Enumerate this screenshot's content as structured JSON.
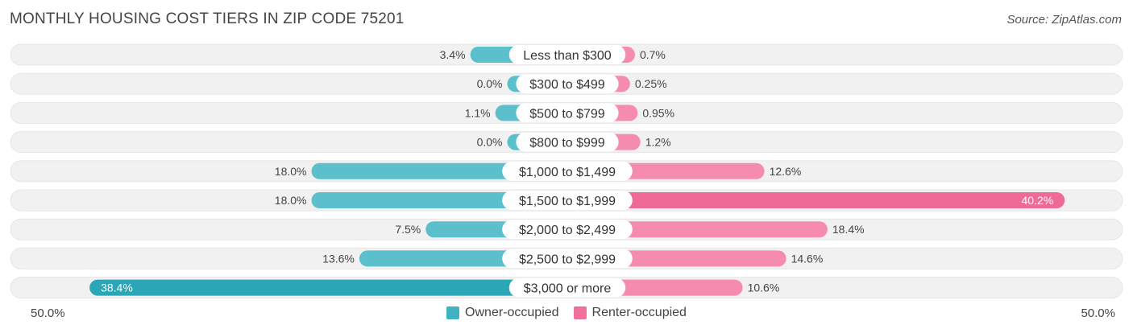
{
  "title": "MONTHLY HOUSING COST TIERS IN ZIP CODE 75201",
  "source": "Source: ZipAtlas.com",
  "colors": {
    "owner": "#5bbfcc",
    "owner_strong": "#2ba6b6",
    "renter": "#f58cb0",
    "renter_strong": "#ef6a96",
    "track": "#f1f1f1"
  },
  "legend": [
    {
      "label": "Owner-occupied",
      "color": "#3fb3c1"
    },
    {
      "label": "Renter-occupied",
      "color": "#f0709b"
    }
  ],
  "axis": {
    "left_label": "50.0%",
    "right_label": "50.0%"
  },
  "chart_data": {
    "type": "bar",
    "orientation": "diverging-horizontal",
    "title": "MONTHLY HOUSING COST TIERS IN ZIP CODE 75201",
    "xlim": [
      -50,
      50
    ],
    "categories": [
      "Less than $300",
      "$300 to $499",
      "$500 to $799",
      "$800 to $999",
      "$1,000 to $1,499",
      "$1,500 to $1,999",
      "$2,000 to $2,499",
      "$2,500 to $2,999",
      "$3,000 or more"
    ],
    "series": [
      {
        "name": "Owner-occupied",
        "values": [
          3.4,
          0.0,
          1.1,
          0.0,
          18.0,
          18.0,
          7.5,
          13.6,
          38.4
        ],
        "labels": [
          "3.4%",
          "0.0%",
          "1.1%",
          "0.0%",
          "18.0%",
          "18.0%",
          "7.5%",
          "13.6%",
          "38.4%"
        ]
      },
      {
        "name": "Renter-occupied",
        "values": [
          0.7,
          0.25,
          0.95,
          1.2,
          12.6,
          40.2,
          18.4,
          14.6,
          10.6
        ],
        "labels": [
          "0.7%",
          "0.25%",
          "0.95%",
          "1.2%",
          "12.6%",
          "40.2%",
          "18.4%",
          "14.6%",
          "10.6%"
        ]
      }
    ],
    "legend_position": "bottom-center"
  }
}
